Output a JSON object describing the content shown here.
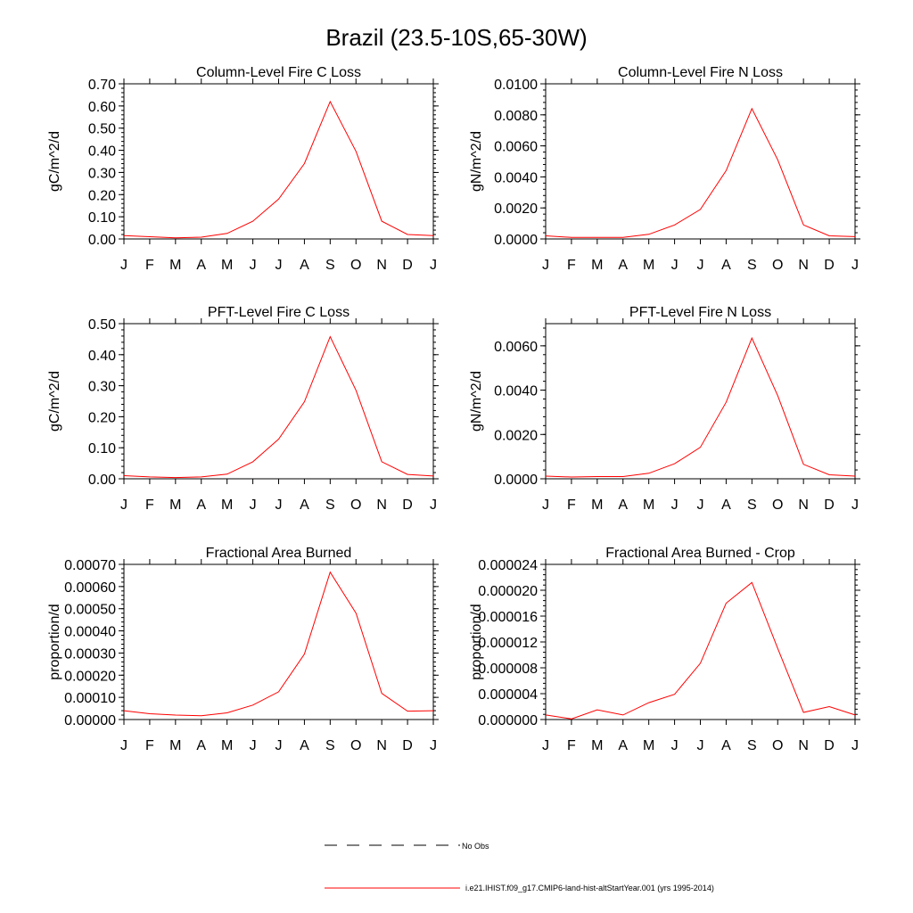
{
  "figure": {
    "title": "Brazil (23.5-10S,65-30W)",
    "legend": [
      {
        "label": "No Obs",
        "color": "#000000",
        "style": "dashed"
      },
      {
        "label": "i.e21.IHIST.f09_g17.CMIP6-land-hist-altStartYear.001 (yrs 1995-2014)",
        "color": "#ff0000",
        "style": "solid"
      }
    ]
  },
  "chart_data": [
    {
      "type": "line",
      "title": "Column-Level Fire C Loss",
      "ylabel": "gC/m^2/d",
      "xlabel": "",
      "categories": [
        "J",
        "F",
        "M",
        "A",
        "M",
        "J",
        "J",
        "A",
        "S",
        "O",
        "N",
        "D",
        "J"
      ],
      "ylim": [
        0,
        0.7
      ],
      "yticks": [
        "0.00",
        "0.10",
        "0.20",
        "0.30",
        "0.40",
        "0.50",
        "0.60",
        "0.70"
      ],
      "grid": false,
      "series": [
        {
          "color": "#ff0000",
          "values": [
            0.015,
            0.01,
            0.005,
            0.008,
            0.025,
            0.08,
            0.18,
            0.34,
            0.62,
            0.395,
            0.08,
            0.02,
            0.015
          ]
        }
      ]
    },
    {
      "type": "line",
      "title": "Column-Level Fire N Loss",
      "ylabel": "gN/m^2/d",
      "xlabel": "",
      "categories": [
        "J",
        "F",
        "M",
        "A",
        "M",
        "J",
        "J",
        "A",
        "S",
        "O",
        "N",
        "D",
        "J"
      ],
      "ylim": [
        0,
        0.01
      ],
      "yticks": [
        "0.0000",
        "0.0020",
        "0.0040",
        "0.0060",
        "0.0080",
        "0.0100"
      ],
      "grid": false,
      "series": [
        {
          "color": "#ff0000",
          "values": [
            0.0002,
            0.0001,
            0.0001,
            0.0001,
            0.0003,
            0.0009,
            0.0019,
            0.0044,
            0.0084,
            0.0051,
            0.0009,
            0.0002,
            0.00015
          ]
        }
      ]
    },
    {
      "type": "line",
      "title": "PFT-Level Fire C Loss",
      "ylabel": "gC/m^2/d",
      "xlabel": "",
      "categories": [
        "J",
        "F",
        "M",
        "A",
        "M",
        "J",
        "J",
        "A",
        "S",
        "O",
        "N",
        "D",
        "J"
      ],
      "ylim": [
        0,
        0.5
      ],
      "yticks": [
        "0.00",
        "0.10",
        "0.20",
        "0.30",
        "0.40",
        "0.50"
      ],
      "grid": false,
      "series": [
        {
          "color": "#ff0000",
          "values": [
            0.01,
            0.006,
            0.004,
            0.006,
            0.015,
            0.055,
            0.128,
            0.248,
            0.458,
            0.285,
            0.055,
            0.014,
            0.009
          ]
        }
      ]
    },
    {
      "type": "line",
      "title": "PFT-Level Fire N Loss",
      "ylabel": "gN/m^2/d",
      "xlabel": "",
      "categories": [
        "J",
        "F",
        "M",
        "A",
        "M",
        "J",
        "J",
        "A",
        "S",
        "O",
        "N",
        "D",
        "J"
      ],
      "ylim": [
        0,
        0.007
      ],
      "yticks": [
        "0.0000",
        "0.0020",
        "0.0040",
        "0.0060"
      ],
      "ytick_values": [
        0,
        0.002,
        0.004,
        0.006
      ],
      "grid": false,
      "series": [
        {
          "color": "#ff0000",
          "values": [
            0.00012,
            8e-05,
            0.0001,
            0.0001,
            0.00025,
            0.00068,
            0.00142,
            0.00345,
            0.00635,
            0.00375,
            0.00065,
            0.00018,
            0.00012
          ]
        }
      ]
    },
    {
      "type": "line",
      "title": "Fractional Area Burned",
      "ylabel": "proportion/d",
      "xlabel": "",
      "categories": [
        "J",
        "F",
        "M",
        "A",
        "M",
        "J",
        "J",
        "A",
        "S",
        "O",
        "N",
        "D",
        "J"
      ],
      "ylim": [
        0,
        0.0007
      ],
      "yticks": [
        "0.00000",
        "0.00010",
        "0.00020",
        "0.00030",
        "0.00040",
        "0.00050",
        "0.00060",
        "0.00070"
      ],
      "grid": false,
      "series": [
        {
          "color": "#ff0000",
          "values": [
            4e-05,
            2.6e-05,
            2e-05,
            1.7e-05,
            3e-05,
            6.5e-05,
            0.000125,
            0.000295,
            0.000665,
            0.00048,
            0.000118,
            3.8e-05,
            4e-05
          ]
        }
      ]
    },
    {
      "type": "line",
      "title": "Fractional Area Burned - Crop",
      "ylabel": "proportion/d",
      "xlabel": "",
      "categories": [
        "J",
        "F",
        "M",
        "A",
        "M",
        "J",
        "J",
        "A",
        "S",
        "O",
        "N",
        "D",
        "J"
      ],
      "ylim": [
        0,
        2.4e-05
      ],
      "yticks": [
        "0.000000",
        "0.000004",
        "0.000008",
        "0.000012",
        "0.000016",
        "0.000020",
        "0.000024"
      ],
      "grid": false,
      "series": [
        {
          "color": "#ff0000",
          "values": [
            7e-07,
            1e-07,
            1.5e-06,
            7e-07,
            2.6e-06,
            3.9e-06,
            8.7e-06,
            1.8e-05,
            2.12e-05,
            1.1e-05,
            1.1e-06,
            2e-06,
            7e-07
          ]
        }
      ]
    }
  ]
}
